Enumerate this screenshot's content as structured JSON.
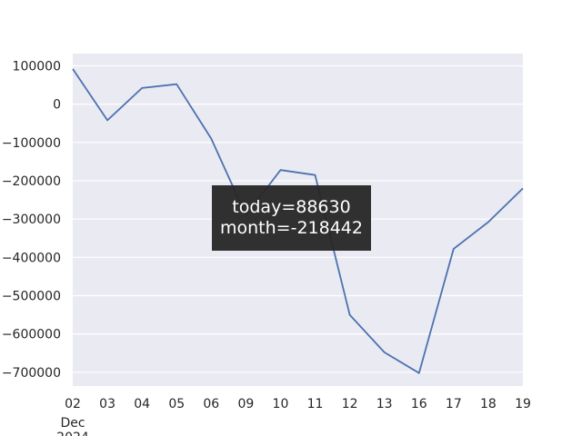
{
  "chart_data": {
    "type": "line",
    "x_categories": [
      "02",
      "03",
      "04",
      "05",
      "06",
      "09",
      "10",
      "11",
      "12",
      "13",
      "16",
      "17",
      "18",
      "19"
    ],
    "x_sublabel": [
      "Dec",
      "2024"
    ],
    "series": [
      {
        "values": [
          92000,
          -42000,
          42000,
          52000,
          -90000,
          -290000,
          -172000,
          -185000,
          -550000,
          -648000,
          -702000,
          -378000,
          -308000,
          -220000
        ],
        "color": "#4c72b0"
      }
    ],
    "yticks": [
      100000,
      0,
      -100000,
      -200000,
      -300000,
      -400000,
      -500000,
      -600000,
      -700000
    ],
    "ylim": [
      -736000,
      132000
    ],
    "grid": true,
    "background": "#eaeaf2",
    "gridColor": "#ffffff"
  },
  "tooltip": {
    "line1": "today=88630",
    "line2": "month=-218442"
  }
}
